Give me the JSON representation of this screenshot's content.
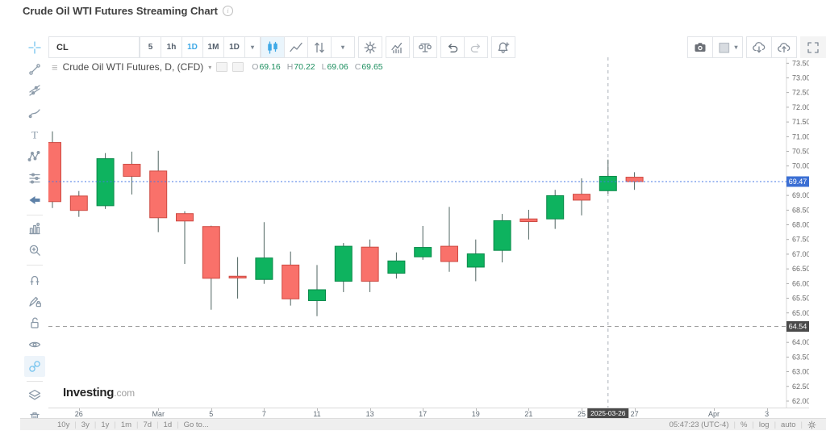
{
  "page": {
    "title": "Crude Oil WTI Futures Streaming Chart"
  },
  "top_toolbar": {
    "symbol": "CL",
    "intervals": [
      {
        "label": "5",
        "active": false
      },
      {
        "label": "1h",
        "active": false
      },
      {
        "label": "1D",
        "active": true
      },
      {
        "label": "1M",
        "active": false
      },
      {
        "label": "1D",
        "active": false
      }
    ],
    "interval_dropdown_caret": "▾",
    "icon_buttons": [
      {
        "name": "candlestick-chart",
        "active": true
      },
      {
        "name": "line-chart"
      },
      {
        "name": "bar-style"
      },
      {
        "name": "bar-style-dropdown",
        "caret": "▾"
      },
      {
        "name": "chart-settings",
        "gap": true
      },
      {
        "name": "indicators",
        "gap": true
      },
      {
        "name": "compare",
        "gap": true
      },
      {
        "name": "undo",
        "gap": true
      },
      {
        "name": "redo"
      },
      {
        "name": "alerts",
        "gap": true
      }
    ],
    "right_buttons": [
      {
        "name": "snapshot"
      },
      {
        "name": "background",
        "caret": "▾"
      },
      {
        "name": "load-chart",
        "gap": true
      },
      {
        "name": "save-chart"
      },
      {
        "name": "fullscreen",
        "gap": true,
        "plain": true
      }
    ]
  },
  "left_toolbar": {
    "groups": [
      [
        {
          "name": "crosshair",
          "blue": true
        },
        {
          "name": "trend-line"
        },
        {
          "name": "fibonacci"
        },
        {
          "name": "brush"
        },
        {
          "name": "text"
        },
        {
          "name": "xabcd-pattern"
        },
        {
          "name": "forecast"
        },
        {
          "name": "arrow"
        }
      ],
      [
        {
          "name": "long-position"
        },
        {
          "name": "zoom-in"
        }
      ],
      [
        {
          "name": "magnet"
        },
        {
          "name": "drawing-lock"
        },
        {
          "name": "unlock"
        },
        {
          "name": "hide-drawings"
        },
        {
          "name": "link-charts",
          "active": true,
          "blue": true
        }
      ],
      [
        {
          "name": "object-tree"
        },
        {
          "name": "remove-drawings"
        }
      ]
    ]
  },
  "legend": {
    "glyph": "≡",
    "title": "Crude Oil WTI Futures, D, (CFD)",
    "caret": "▾",
    "ohlc": {
      "o_label": "O",
      "o": "69.16",
      "h_label": "H",
      "h": "70.22",
      "l_label": "L",
      "l": "69.06",
      "c_label": "C",
      "c": "69.65"
    }
  },
  "watermark": {
    "bold": "Investing",
    "suffix": ".com"
  },
  "bottom_toolbar": {
    "ranges": [
      "10y",
      "3y",
      "1y",
      "1m",
      "7d",
      "1d",
      "Go to..."
    ],
    "clock": "05:47:23 (UTC-4)",
    "percent_label": "%",
    "log_label": "log",
    "auto_label": "auto"
  },
  "chart_data": {
    "type": "candlestick",
    "title": "Crude Oil WTI Futures, D, (CFD)",
    "price_axis": {
      "max_label": 73.5,
      "min_label": 62.0,
      "step": 0.5,
      "y_range": [
        61.78,
        73.7
      ]
    },
    "current_price": {
      "value": "69.47",
      "label_color": "#3b6fd4",
      "line_color": "#4577e6"
    },
    "level_line": {
      "value": "64.54",
      "label_color": "#4a4a4a",
      "line_color": "#a0a0a0"
    },
    "crosshair": {
      "index": 21,
      "date_label": "2025-03-26"
    },
    "x_ticks": [
      {
        "index": 1,
        "label": "26"
      },
      {
        "index": 4,
        "label": "Mar"
      },
      {
        "index": 6,
        "label": "5"
      },
      {
        "index": 8,
        "label": "7"
      },
      {
        "index": 10,
        "label": "11"
      },
      {
        "index": 12,
        "label": "13"
      },
      {
        "index": 14,
        "label": "17"
      },
      {
        "index": 16,
        "label": "19"
      },
      {
        "index": 18,
        "label": "21"
      },
      {
        "index": 20,
        "label": "25"
      },
      {
        "index": 22,
        "label": "27"
      },
      {
        "index": 25,
        "label": "Apr"
      },
      {
        "index": 27,
        "label": "3"
      }
    ],
    "candles": [
      {
        "date": "Feb 25",
        "o": 70.8,
        "h": 71.18,
        "l": 68.57,
        "c": 68.79
      },
      {
        "date": "Feb 26",
        "o": 68.98,
        "h": 69.15,
        "l": 68.27,
        "c": 68.49
      },
      {
        "date": "Feb 27",
        "o": 68.65,
        "h": 70.44,
        "l": 68.54,
        "c": 70.25
      },
      {
        "date": "Feb 28",
        "o": 70.06,
        "h": 70.49,
        "l": 69.03,
        "c": 69.65
      },
      {
        "date": "Mar 3",
        "o": 69.83,
        "h": 70.52,
        "l": 67.75,
        "c": 68.24
      },
      {
        "date": "Mar 4",
        "o": 68.38,
        "h": 68.46,
        "l": 66.67,
        "c": 68.13
      },
      {
        "date": "Mar 5",
        "o": 67.94,
        "h": 67.97,
        "l": 65.11,
        "c": 66.18
      },
      {
        "date": "Mar 6",
        "o": 66.25,
        "h": 66.9,
        "l": 65.49,
        "c": 66.19
      },
      {
        "date": "Mar 7",
        "o": 66.14,
        "h": 68.09,
        "l": 65.99,
        "c": 66.87
      },
      {
        "date": "Mar 10",
        "o": 66.63,
        "h": 67.09,
        "l": 65.25,
        "c": 65.48
      },
      {
        "date": "Mar 11",
        "o": 65.42,
        "h": 66.63,
        "l": 64.89,
        "c": 65.79
      },
      {
        "date": "Mar 12",
        "o": 66.08,
        "h": 67.38,
        "l": 65.71,
        "c": 67.27
      },
      {
        "date": "Mar 13",
        "o": 67.24,
        "h": 67.5,
        "l": 65.71,
        "c": 66.08
      },
      {
        "date": "Mar 14",
        "o": 66.35,
        "h": 67.06,
        "l": 66.17,
        "c": 66.77
      },
      {
        "date": "Mar 17",
        "o": 66.91,
        "h": 67.96,
        "l": 66.81,
        "c": 67.23
      },
      {
        "date": "Mar 18",
        "o": 67.27,
        "h": 68.61,
        "l": 66.4,
        "c": 66.75
      },
      {
        "date": "Mar 19",
        "o": 66.56,
        "h": 67.5,
        "l": 66.08,
        "c": 67.01
      },
      {
        "date": "Mar 20",
        "o": 67.13,
        "h": 68.37,
        "l": 66.72,
        "c": 68.14
      },
      {
        "date": "Mar 21",
        "o": 68.2,
        "h": 68.51,
        "l": 67.5,
        "c": 68.11
      },
      {
        "date": "Mar 24",
        "o": 68.2,
        "h": 69.19,
        "l": 67.86,
        "c": 68.99
      },
      {
        "date": "Mar 25",
        "o": 69.04,
        "h": 69.58,
        "l": 68.32,
        "c": 68.84
      },
      {
        "date": "Mar 26",
        "o": 69.16,
        "h": 70.22,
        "l": 69.06,
        "c": 69.65
      },
      {
        "date": "Mar 27",
        "o": 69.62,
        "h": 69.79,
        "l": 69.19,
        "c": 69.47
      }
    ],
    "colors": {
      "up": "#0eb35f",
      "up_border": "#0a8a4a",
      "down": "#f9716a",
      "down_border": "#ce4a42",
      "wick": "#4f6460"
    }
  }
}
